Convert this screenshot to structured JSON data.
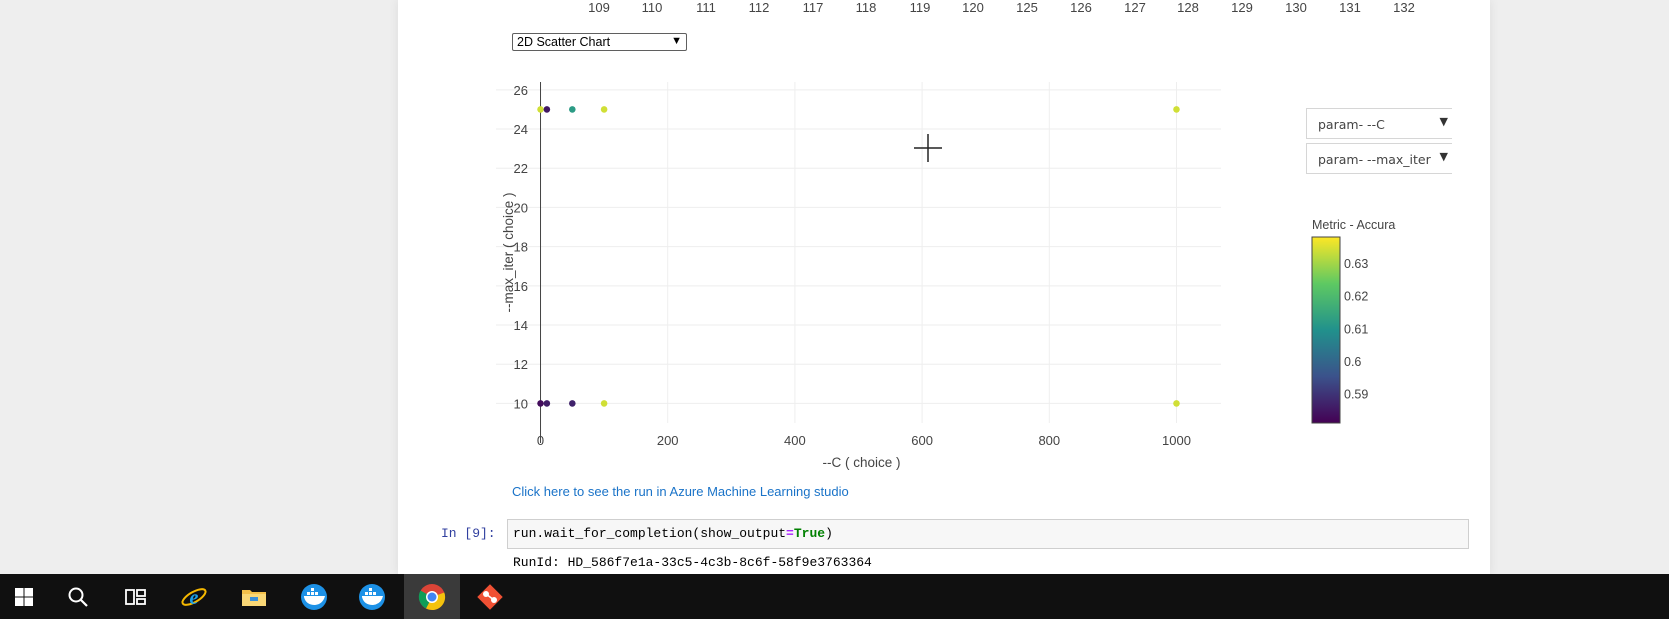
{
  "top_axis": {
    "ticks": [
      "109",
      "110",
      "111",
      "112",
      "117",
      "118",
      "119",
      "120",
      "125",
      "126",
      "127",
      "128",
      "129",
      "130",
      "131",
      "132"
    ]
  },
  "chart_type_select": {
    "selected": "2D Scatter Chart"
  },
  "chart_data": {
    "type": "scatter",
    "x_label": "--C ( choice )",
    "y_label": "--max_iter ( choice )",
    "xlim": [
      -70,
      1070
    ],
    "ylim": [
      9,
      26.4
    ],
    "x_ticks": [
      "0",
      "200",
      "400",
      "600",
      "800",
      "1000"
    ],
    "y_ticks": [
      "10",
      "12",
      "14",
      "16",
      "18",
      "20",
      "22",
      "24",
      "26"
    ],
    "points": [
      {
        "x": 0.01,
        "y": 25,
        "accuracy": 0.634
      },
      {
        "x": 10,
        "y": 25,
        "accuracy": 0.585
      },
      {
        "x": 50,
        "y": 25,
        "accuracy": 0.612
      },
      {
        "x": 100,
        "y": 25,
        "accuracy": 0.634
      },
      {
        "x": 1000,
        "y": 25,
        "accuracy": 0.634
      },
      {
        "x": 0.01,
        "y": 10,
        "accuracy": 0.583
      },
      {
        "x": 10,
        "y": 10,
        "accuracy": 0.586
      },
      {
        "x": 50,
        "y": 10,
        "accuracy": 0.587
      },
      {
        "x": 100,
        "y": 10,
        "accuracy": 0.634
      },
      {
        "x": 1000,
        "y": 10,
        "accuracy": 0.634
      }
    ],
    "colorbar": {
      "title": "Metric - Accuracy",
      "ticks": [
        "0.63",
        "0.62",
        "0.61",
        "0.6",
        "0.59"
      ],
      "tick_values": [
        0.63,
        0.62,
        0.61,
        0.6,
        0.59
      ],
      "range": [
        0.581,
        0.638
      ],
      "colors": [
        "#440154",
        "#3b528b",
        "#21918c",
        "#5ec962",
        "#fde725"
      ]
    }
  },
  "axis_dropdowns": {
    "x": "param- --C",
    "y": "param- --max_iter"
  },
  "azure_link": "Click here to see the run in Azure Machine Learning studio",
  "cell": {
    "prompt": "In [9]:",
    "code_prefix": "run.wait_for_completion(show_output",
    "code_op": "=",
    "code_kw": "True",
    "code_suffix": ")"
  },
  "output_line": "RunId: HD_586f7e1a-33c5-4c3b-8c6f-58f9e3763364",
  "taskbar": {
    "items": [
      "windows-start",
      "search",
      "task-view",
      "internet-explorer",
      "file-explorer",
      "docker",
      "docker-2",
      "chrome",
      "git"
    ],
    "active": "chrome"
  }
}
